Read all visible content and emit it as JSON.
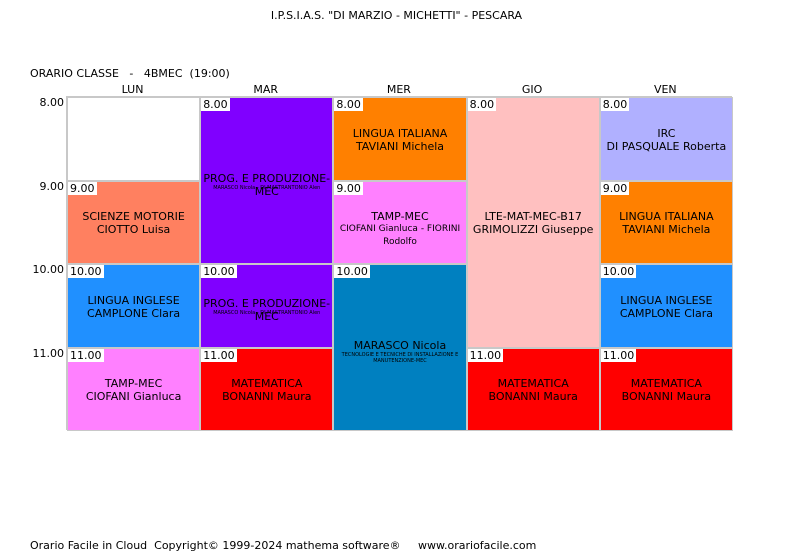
{
  "school_title": "I.P.S.I.A.S. \"DI MARZIO - MICHETTI\" - PESCARA",
  "class_title": "ORARIO CLASSE   -   4BMEC  (19:00)",
  "days": [
    "LUN",
    "MAR",
    "MER",
    "GIO",
    "VEN"
  ],
  "times": [
    "8.00",
    "9.00",
    "10.00",
    "11.00"
  ],
  "colors": {
    "empty": "#ffffff",
    "purple": "#8000ff",
    "orange": "#ff8000",
    "pink_light": "#ffc0c0",
    "lavender": "#b0b0ff",
    "salmon": "#ff8060",
    "magenta": "#ff80ff",
    "blue": "#2090ff",
    "teal_blue": "#0080c0",
    "red": "#ff0000"
  },
  "cells": [
    {
      "day": 0,
      "start": 0,
      "span": 1,
      "hour": "",
      "color": "empty",
      "line1": "",
      "line2": "",
      "small": ""
    },
    {
      "day": 0,
      "start": 1,
      "span": 1,
      "hour": "9.00",
      "color": "salmon",
      "line1": "SCIENZE MOTORIE",
      "line2": "CIOTTO Luisa",
      "small": ""
    },
    {
      "day": 0,
      "start": 2,
      "span": 1,
      "hour": "10.00",
      "color": "blue",
      "line1": "LINGUA INGLESE",
      "line2": "CAMPLONE Clara",
      "small": ""
    },
    {
      "day": 0,
      "start": 3,
      "span": 1,
      "hour": "11.00",
      "color": "magenta",
      "line1": "TAMP-MEC",
      "line2": "CIOFANI Gianluca",
      "small": ""
    },
    {
      "day": 1,
      "start": 0,
      "span": 2,
      "hour": "8.00",
      "color": "purple",
      "line1": "PROG. E PRODUZIONE-MEC",
      "line2": "",
      "small": "MARASCO Nicola - DI MASTRANTONIO Alen"
    },
    {
      "day": 1,
      "start": 2,
      "span": 1,
      "hour": "10.00",
      "color": "purple",
      "line1": "PROG. E PRODUZIONE-MEC",
      "line2": "",
      "small": "MARASCO Nicola - DI MASTRANTONIO Alen"
    },
    {
      "day": 1,
      "start": 3,
      "span": 1,
      "hour": "11.00",
      "color": "red",
      "line1": "MATEMATICA",
      "line2": "BONANNI Maura",
      "small": ""
    },
    {
      "day": 2,
      "start": 0,
      "span": 1,
      "hour": "8.00",
      "color": "orange",
      "line1": "LINGUA ITALIANA",
      "line2": "TAVIANI Michela",
      "small": ""
    },
    {
      "day": 2,
      "start": 1,
      "span": 1,
      "hour": "9.00",
      "color": "magenta",
      "line1": "TAMP-MEC",
      "line2": "",
      "small": "",
      "line2b": "CIOFANI Gianluca - FIORINI Rodolfo"
    },
    {
      "day": 2,
      "start": 2,
      "span": 2,
      "hour": "10.00",
      "color": "teal_blue",
      "line1": "MARASCO Nicola",
      "line2": "",
      "small": "TECNOLOGIE E TECNICHE DI INSTALLAZIONE E MANUTENZIONE-MEC"
    },
    {
      "day": 3,
      "start": 0,
      "span": 3,
      "hour": "8.00",
      "color": "pink_light",
      "line1": "LTE-MAT-MEC-B17",
      "line2": "GRIMOLIZZI Giuseppe",
      "small": ""
    },
    {
      "day": 3,
      "start": 3,
      "span": 1,
      "hour": "11.00",
      "color": "red",
      "line1": "MATEMATICA",
      "line2": "BONANNI Maura",
      "small": ""
    },
    {
      "day": 4,
      "start": 0,
      "span": 1,
      "hour": "8.00",
      "color": "lavender",
      "line1": "IRC",
      "line2": "DI PASQUALE Roberta",
      "small": ""
    },
    {
      "day": 4,
      "start": 1,
      "span": 1,
      "hour": "9.00",
      "color": "orange",
      "line1": "LINGUA ITALIANA",
      "line2": "TAVIANI Michela",
      "small": ""
    },
    {
      "day": 4,
      "start": 2,
      "span": 1,
      "hour": "10.00",
      "color": "blue",
      "line1": "LINGUA INGLESE",
      "line2": "CAMPLONE Clara",
      "small": ""
    },
    {
      "day": 4,
      "start": 3,
      "span": 1,
      "hour": "11.00",
      "color": "red",
      "line1": "MATEMATICA",
      "line2": "BONANNI Maura",
      "small": ""
    }
  ],
  "footer": "Orario Facile in Cloud  Copyright© 1999-2024 mathema software®     www.orariofacile.com"
}
